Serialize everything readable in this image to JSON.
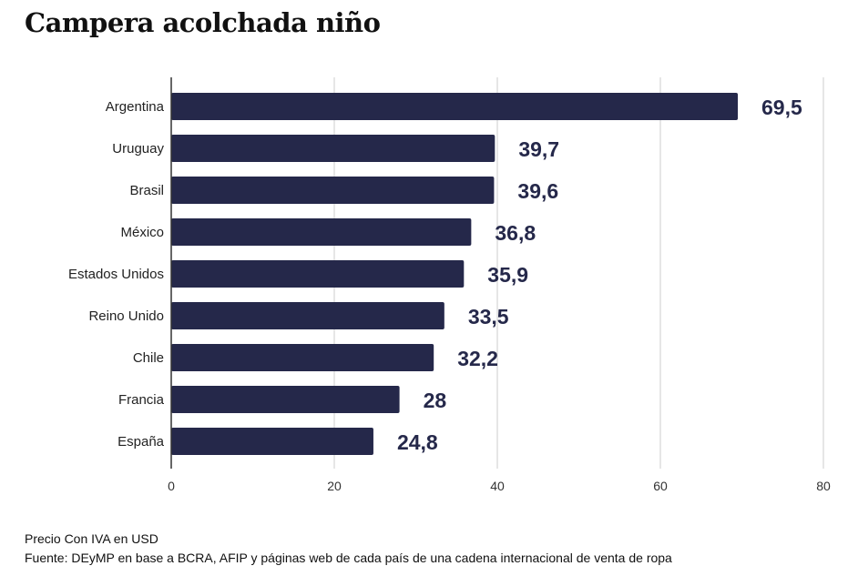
{
  "chart_data": {
    "type": "bar",
    "orientation": "horizontal",
    "title": "Campera acolchada niño",
    "categories": [
      "Argentina",
      "Uruguay",
      "Brasil",
      "México",
      "Estados Unidos",
      "Reino Unido",
      "Chile",
      "Francia",
      "España"
    ],
    "values": [
      69.5,
      39.7,
      39.6,
      36.8,
      35.9,
      33.5,
      32.2,
      28,
      24.8
    ],
    "data_labels": [
      "69,5",
      "39,7",
      "39,6",
      "36,8",
      "35,9",
      "33,5",
      "32,2",
      "28",
      "24,8"
    ],
    "xlim": [
      0,
      80
    ],
    "xticks": [
      0,
      20,
      40,
      60,
      80
    ],
    "xtick_labels": [
      "0",
      "20",
      "40",
      "60",
      "80"
    ],
    "grid": true,
    "bar_color": "#25284a",
    "label_color": "#25284a"
  },
  "notes": {
    "unit": "Precio Con IVA en USD",
    "source": "Fuente: DEyMP en base a BCRA, AFIP y páginas web de cada país de una cadena internacional de venta de ropa"
  }
}
